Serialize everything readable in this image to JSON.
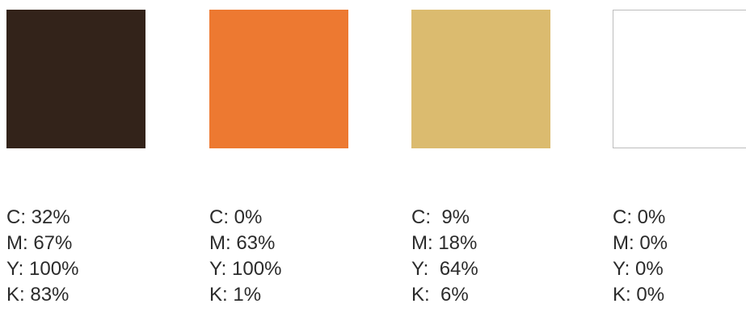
{
  "swatches": [
    {
      "color": "#33231a",
      "outlined": false,
      "values": [
        "C: 32%",
        "M: 67%",
        "Y: 100%",
        "K: 83%"
      ]
    },
    {
      "color": "#ed7931",
      "outlined": false,
      "values": [
        "C: 0%",
        "M: 63%",
        "Y: 100%",
        "K: 1%"
      ]
    },
    {
      "color": "#dbbb6f",
      "outlined": false,
      "values": [
        "C:  9%",
        "M: 18%",
        "Y:  64%",
        "K:  6%"
      ]
    },
    {
      "color": "#ffffff",
      "outlined": true,
      "values": [
        "C: 0%",
        "M: 0%",
        "Y: 0%",
        "K: 0%"
      ]
    }
  ]
}
